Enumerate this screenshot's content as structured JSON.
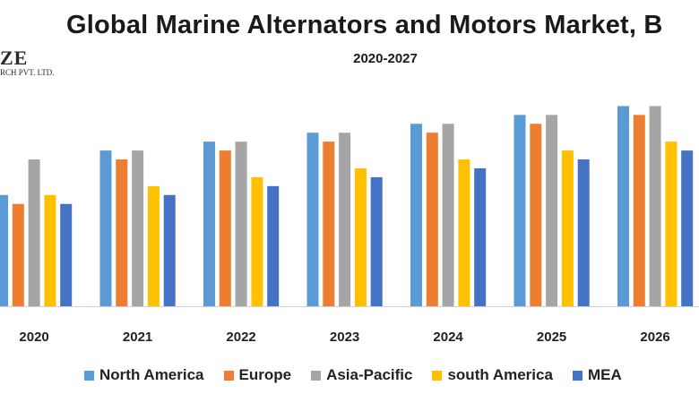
{
  "logo": {
    "line1": "ZE",
    "line2": "RCH PVT. LTD."
  },
  "chart_data": {
    "type": "bar",
    "title": "Global Marine Alternators and Motors Market, B",
    "subtitle": "2020-2027",
    "categories": [
      "2020",
      "2021",
      "2022",
      "2023",
      "2024",
      "2025",
      "2026"
    ],
    "series": [
      {
        "name": "North America",
        "color": "#5b9bd5",
        "values": [
          1.25,
          1.75,
          1.85,
          1.95,
          2.05,
          2.15,
          2.25
        ]
      },
      {
        "name": "Europe",
        "color": "#ed7d31",
        "values": [
          1.15,
          1.65,
          1.75,
          1.85,
          1.95,
          2.05,
          2.15
        ]
      },
      {
        "name": "Asia-Pacific",
        "color": "#a5a5a5",
        "values": [
          1.65,
          1.75,
          1.85,
          1.95,
          2.05,
          2.15,
          2.25
        ]
      },
      {
        "name": "south America",
        "color": "#ffc000",
        "values": [
          1.25,
          1.35,
          1.45,
          1.55,
          1.65,
          1.75,
          1.85
        ]
      },
      {
        "name": "MEA",
        "color": "#4472c4",
        "values": [
          1.15,
          1.25,
          1.35,
          1.45,
          1.55,
          1.65,
          1.75
        ]
      }
    ],
    "ylim": [
      0,
      2.3
    ],
    "grid": false,
    "legend_position": "bottom"
  }
}
